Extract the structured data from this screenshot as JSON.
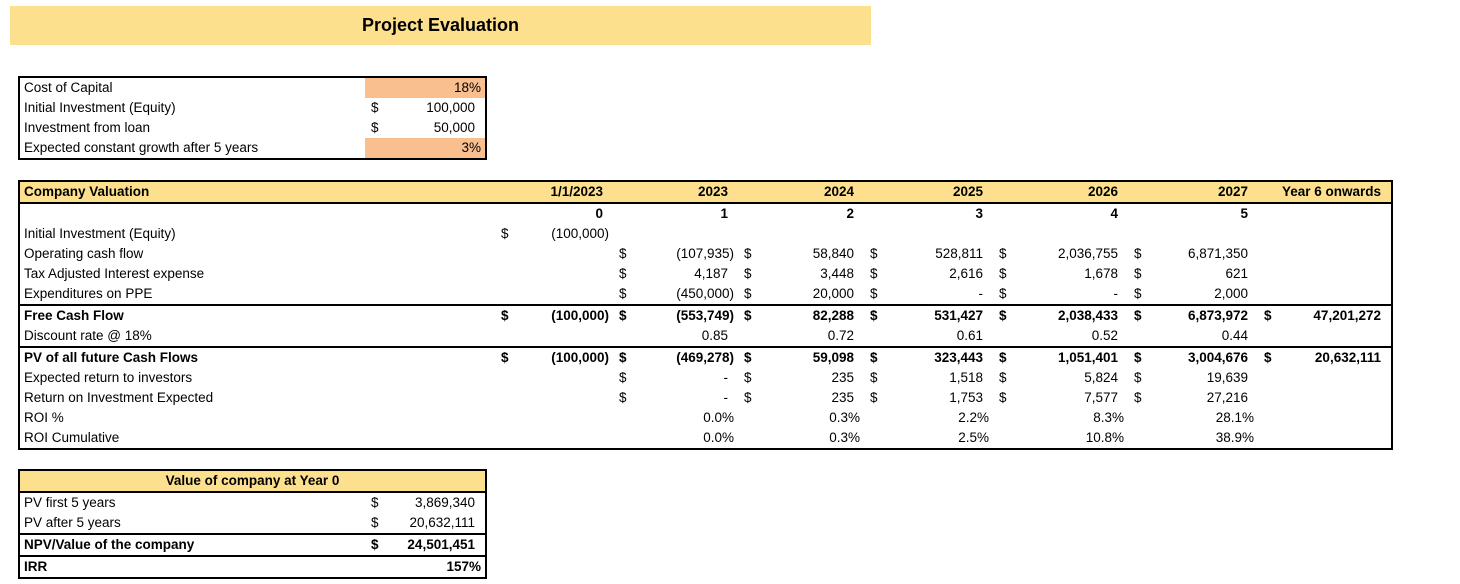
{
  "title": "Project Evaluation",
  "colors": {
    "band": "#fde08e",
    "highlight": "#fabf8f",
    "border": "#000000",
    "background": "#ffffff"
  },
  "assumptions": {
    "rows": [
      {
        "label": "Cost of Capital",
        "cells": [
          {
            "v": "18%",
            "h": true
          }
        ]
      },
      {
        "label": "Initial Investment (Equity)",
        "cells": [
          {
            "d": "$",
            "v": "100,000"
          }
        ]
      },
      {
        "label": "Investment from loan",
        "cells": [
          {
            "d": "$",
            "v": "50,000"
          }
        ]
      },
      {
        "label": "Expected constant growth after 5 years",
        "cells": [
          {
            "v": "3%",
            "h": true
          }
        ]
      }
    ]
  },
  "valuation": {
    "title": "Company Valuation",
    "header": {
      "cells": [
        {
          "v": "1/1/2023"
        },
        {
          "v": "2023"
        },
        {
          "v": "2024"
        },
        {
          "v": "2025"
        },
        {
          "v": "2026"
        },
        {
          "v": "2027"
        },
        {
          "v": "Year 6 onwards"
        }
      ]
    },
    "periods": {
      "cells": [
        {
          "v": "0"
        },
        {
          "v": "1"
        },
        {
          "v": "2"
        },
        {
          "v": "3"
        },
        {
          "v": "4"
        },
        {
          "v": "5"
        },
        {}
      ]
    },
    "rows": [
      {
        "label": "Initial Investment (Equity)",
        "cells": [
          {
            "d": "$",
            "v": "(100,000)"
          },
          {},
          {},
          {},
          {},
          {},
          {}
        ]
      },
      {
        "label": "Operating cash flow",
        "cells": [
          {},
          {
            "d": "$",
            "v": "(107,935)"
          },
          {
            "d": "$",
            "v": "58,840"
          },
          {
            "d": "$",
            "v": "528,811"
          },
          {
            "d": "$",
            "v": "2,036,755"
          },
          {
            "d": "$",
            "v": "6,871,350"
          },
          {}
        ]
      },
      {
        "label": "Tax Adjusted Interest expense",
        "cells": [
          {},
          {
            "d": "$",
            "v": "4,187"
          },
          {
            "d": "$",
            "v": "3,448"
          },
          {
            "d": "$",
            "v": "2,616"
          },
          {
            "d": "$",
            "v": "1,678"
          },
          {
            "d": "$",
            "v": "621"
          },
          {}
        ]
      },
      {
        "label": "Expenditures on PPE",
        "cells": [
          {},
          {
            "d": "$",
            "v": "(450,000)"
          },
          {
            "d": "$",
            "v": "20,000"
          },
          {
            "d": "$",
            "v": "-"
          },
          {
            "d": "$",
            "v": "-"
          },
          {
            "d": "$",
            "v": "2,000"
          },
          {}
        ]
      },
      {
        "label": "Free Cash Flow",
        "cells": [
          {
            "d": "$",
            "v": "(100,000)"
          },
          {
            "d": "$",
            "v": "(553,749)"
          },
          {
            "d": "$",
            "v": "82,288"
          },
          {
            "d": "$",
            "v": "531,427"
          },
          {
            "d": "$",
            "v": "2,038,433"
          },
          {
            "d": "$",
            "v": "6,873,972"
          },
          {
            "d": "$",
            "v": "47,201,272"
          }
        ]
      },
      {
        "label": "Discount rate @ 18%",
        "cells": [
          {},
          {
            "v": "0.85"
          },
          {
            "v": "0.72"
          },
          {
            "v": "0.61"
          },
          {
            "v": "0.52"
          },
          {
            "v": "0.44"
          },
          {}
        ]
      },
      {
        "label": "PV of all future Cash Flows",
        "cells": [
          {
            "d": "$",
            "v": "(100,000)"
          },
          {
            "d": "$",
            "v": "(469,278)"
          },
          {
            "d": "$",
            "v": "59,098"
          },
          {
            "d": "$",
            "v": "323,443"
          },
          {
            "d": "$",
            "v": "1,051,401"
          },
          {
            "d": "$",
            "v": "3,004,676"
          },
          {
            "d": "$",
            "v": "20,632,111"
          }
        ]
      },
      {
        "label": "Expected return to investors",
        "cells": [
          {},
          {
            "d": "$",
            "v": "-"
          },
          {
            "d": "$",
            "v": "235"
          },
          {
            "d": "$",
            "v": "1,518"
          },
          {
            "d": "$",
            "v": "5,824"
          },
          {
            "d": "$",
            "v": "19,639"
          },
          {}
        ]
      },
      {
        "label": "Return on Investment Expected",
        "cells": [
          {},
          {
            "d": "$",
            "v": "-"
          },
          {
            "d": "$",
            "v": "235"
          },
          {
            "d": "$",
            "v": "1,753"
          },
          {
            "d": "$",
            "v": "7,577"
          },
          {
            "d": "$",
            "v": "27,216"
          },
          {}
        ]
      },
      {
        "label": "ROI %",
        "cells": [
          {},
          {
            "v": "0.0%"
          },
          {
            "v": "0.3%"
          },
          {
            "v": "2.2%"
          },
          {
            "v": "8.3%"
          },
          {
            "v": "28.1%"
          },
          {}
        ]
      },
      {
        "label": "ROI Cumulative",
        "cells": [
          {},
          {
            "v": "0.0%"
          },
          {
            "v": "0.3%"
          },
          {
            "v": "2.5%"
          },
          {
            "v": "10.8%"
          },
          {
            "v": "38.9%"
          },
          {}
        ]
      }
    ]
  },
  "company_value": {
    "title": "Value of company at Year 0",
    "rows": [
      {
        "label": "PV first 5 years",
        "cells": [
          {
            "d": "$",
            "v": "3,869,340"
          }
        ]
      },
      {
        "label": "PV after 5 years",
        "cells": [
          {
            "d": "$",
            "v": "20,632,111"
          }
        ]
      },
      {
        "label": "NPV/Value of the company",
        "cells": [
          {
            "d": "$",
            "v": "24,501,451"
          }
        ]
      },
      {
        "label": "IRR",
        "cells": [
          {
            "v": "157%"
          }
        ]
      }
    ]
  }
}
